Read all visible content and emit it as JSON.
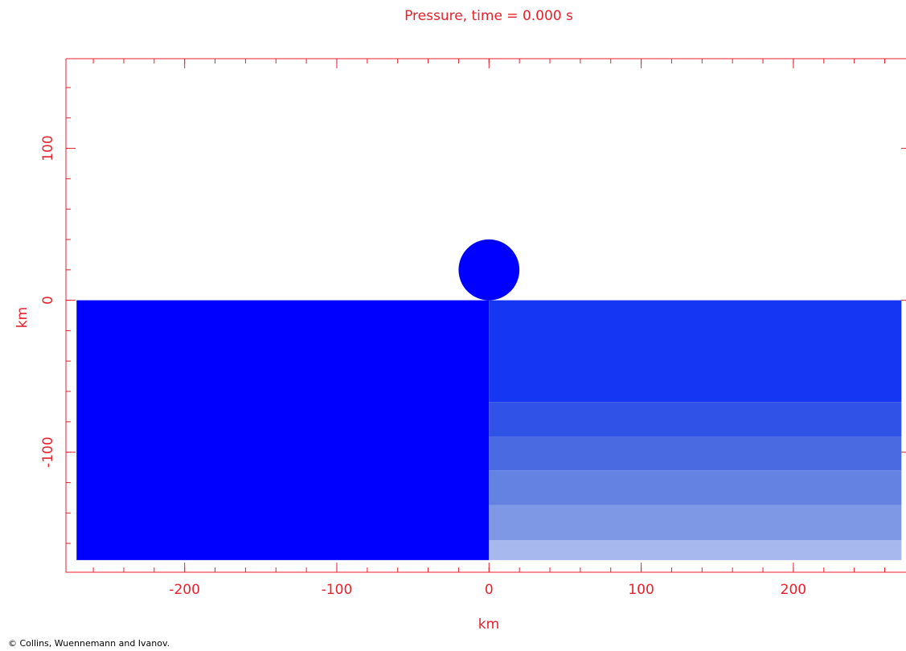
{
  "chart_data": {
    "type": "field",
    "title": "Pressure, time =   0.000 s",
    "x_label": "km",
    "y_label": "km",
    "footer": "© Collins, Wuennemann and Ivanov.",
    "xlim": [
      -278,
      274
    ],
    "ylim": [
      -179,
      159
    ],
    "xticks": [
      -200,
      -100,
      0,
      100,
      200
    ],
    "yticks": [
      -100,
      0,
      100
    ],
    "regions": [
      {
        "x": [
          -271,
          0
        ],
        "y": [
          -171,
          0
        ],
        "color": "#0000ff"
      },
      {
        "x": [
          0,
          271
        ],
        "y": [
          -67,
          0
        ],
        "color": "#1536f2"
      },
      {
        "x": [
          0,
          271
        ],
        "y": [
          -90,
          -67
        ],
        "color": "#3152e6"
      },
      {
        "x": [
          0,
          271
        ],
        "y": [
          -112,
          -90
        ],
        "color": "#4a6ae2"
      },
      {
        "x": [
          0,
          271
        ],
        "y": [
          -135,
          -112
        ],
        "color": "#6482e2"
      },
      {
        "x": [
          0,
          271
        ],
        "y": [
          -158,
          -135
        ],
        "color": "#7e98e6"
      },
      {
        "x": [
          0,
          271
        ],
        "y": [
          -171,
          -158
        ],
        "color": "#a6b8ee"
      }
    ],
    "impactor": {
      "x": 0,
      "y": 20,
      "r": 20,
      "color": "#0000ff"
    }
  }
}
